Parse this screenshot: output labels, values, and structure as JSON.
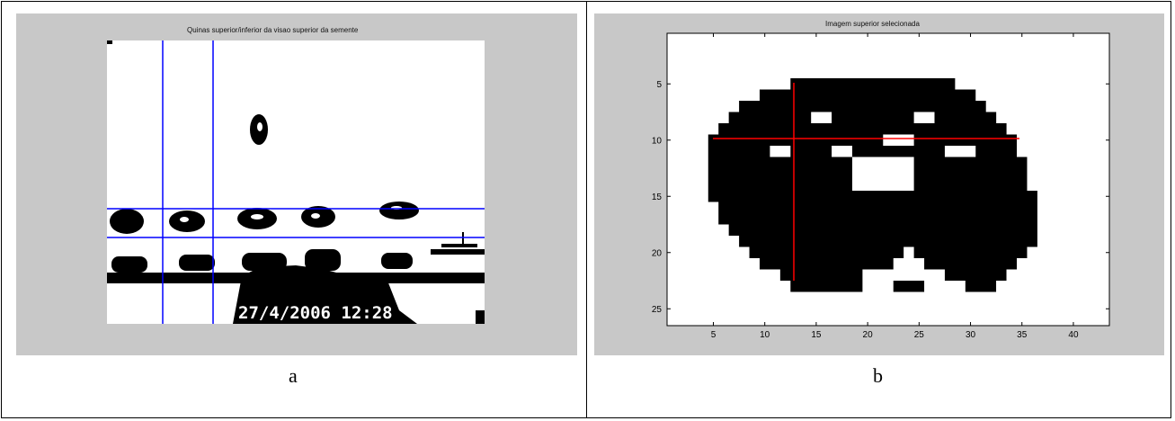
{
  "panel_a": {
    "title": "Quinas superior/inferior da visao superior da semente",
    "timestamp": "27/4/2006 12:28",
    "caption": "a"
  },
  "panel_b": {
    "title": "Imagem superior selecionada",
    "caption": "b",
    "x_ticks": [
      "5",
      "10",
      "15",
      "20",
      "25",
      "30",
      "35",
      "40"
    ],
    "y_ticks": [
      "5",
      "10",
      "15",
      "20",
      "25"
    ]
  },
  "colors": {
    "figure_bg": "#c8c8c8",
    "guide_lines_a": "#0000ff",
    "crosshair_b": "#ff0000",
    "pixels": "#000000"
  }
}
